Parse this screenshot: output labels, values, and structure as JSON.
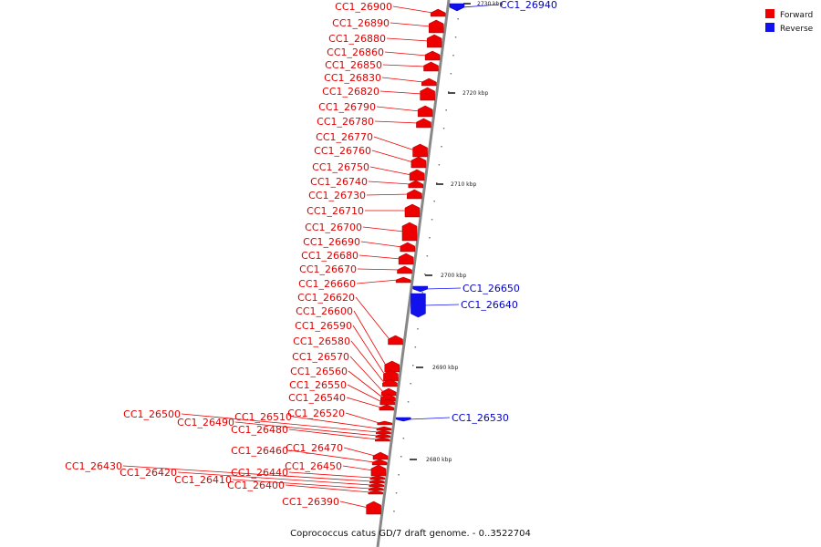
{
  "caption": "Coprococcus catus GD/7 draft genome. - 0..3522704",
  "legend": [
    {
      "label": "Forward",
      "color": "#ee0000"
    },
    {
      "label": "Reverse",
      "color": "#1111ee"
    }
  ],
  "colors": {
    "forward": "#ee0000",
    "reverse": "#1111ee",
    "axis": "#888888"
  },
  "ticks": [
    "2730 kbp",
    "2720 kbp",
    "2710 kbp",
    "2700 kbp",
    "2690 kbp",
    "2680 kbp"
  ],
  "genes": [
    {
      "label": "CC1_26940",
      "strand": "reverse"
    },
    {
      "label": "CC1_26900",
      "strand": "forward"
    },
    {
      "label": "CC1_26890",
      "strand": "forward"
    },
    {
      "label": "CC1_26880",
      "strand": "forward"
    },
    {
      "label": "CC1_26860",
      "strand": "forward"
    },
    {
      "label": "CC1_26850",
      "strand": "forward"
    },
    {
      "label": "CC1_26830",
      "strand": "forward"
    },
    {
      "label": "CC1_26820",
      "strand": "forward"
    },
    {
      "label": "CC1_26790",
      "strand": "forward"
    },
    {
      "label": "CC1_26780",
      "strand": "forward"
    },
    {
      "label": "CC1_26770",
      "strand": "forward"
    },
    {
      "label": "CC1_26760",
      "strand": "forward"
    },
    {
      "label": "CC1_26750",
      "strand": "forward"
    },
    {
      "label": "CC1_26740",
      "strand": "forward"
    },
    {
      "label": "CC1_26730",
      "strand": "forward"
    },
    {
      "label": "CC1_26710",
      "strand": "forward"
    },
    {
      "label": "CC1_26700",
      "strand": "forward"
    },
    {
      "label": "CC1_26690",
      "strand": "forward"
    },
    {
      "label": "CC1_26680",
      "strand": "forward"
    },
    {
      "label": "CC1_26670",
      "strand": "forward"
    },
    {
      "label": "CC1_26660",
      "strand": "forward"
    },
    {
      "label": "CC1_26650",
      "strand": "reverse"
    },
    {
      "label": "CC1_26640",
      "strand": "reverse"
    },
    {
      "label": "CC1_26620",
      "strand": "forward"
    },
    {
      "label": "CC1_26600",
      "strand": "forward"
    },
    {
      "label": "CC1_26590",
      "strand": "forward"
    },
    {
      "label": "CC1_26580",
      "strand": "forward"
    },
    {
      "label": "CC1_26570",
      "strand": "forward"
    },
    {
      "label": "CC1_26560",
      "strand": "forward"
    },
    {
      "label": "CC1_26550",
      "strand": "forward"
    },
    {
      "label": "CC1_26540",
      "strand": "forward"
    },
    {
      "label": "CC1_26530",
      "strand": "reverse"
    },
    {
      "label": "CC1_26520",
      "strand": "forward"
    },
    {
      "label": "CC1_26510",
      "strand": "forward"
    },
    {
      "label": "CC1_26500",
      "strand": "forward"
    },
    {
      "label": "CC1_26490",
      "strand": "forward"
    },
    {
      "label": "CC1_26480",
      "strand": "forward"
    },
    {
      "label": "CC1_26470",
      "strand": "forward"
    },
    {
      "label": "CC1_26460",
      "strand": "forward"
    },
    {
      "label": "CC1_26450",
      "strand": "forward"
    },
    {
      "label": "CC1_26440",
      "strand": "forward"
    },
    {
      "label": "CC1_26430",
      "strand": "forward"
    },
    {
      "label": "CC1_26420",
      "strand": "forward"
    },
    {
      "label": "CC1_26410",
      "strand": "forward"
    },
    {
      "label": "CC1_26400",
      "strand": "forward"
    },
    {
      "label": "CC1_26390",
      "strand": "forward"
    }
  ]
}
